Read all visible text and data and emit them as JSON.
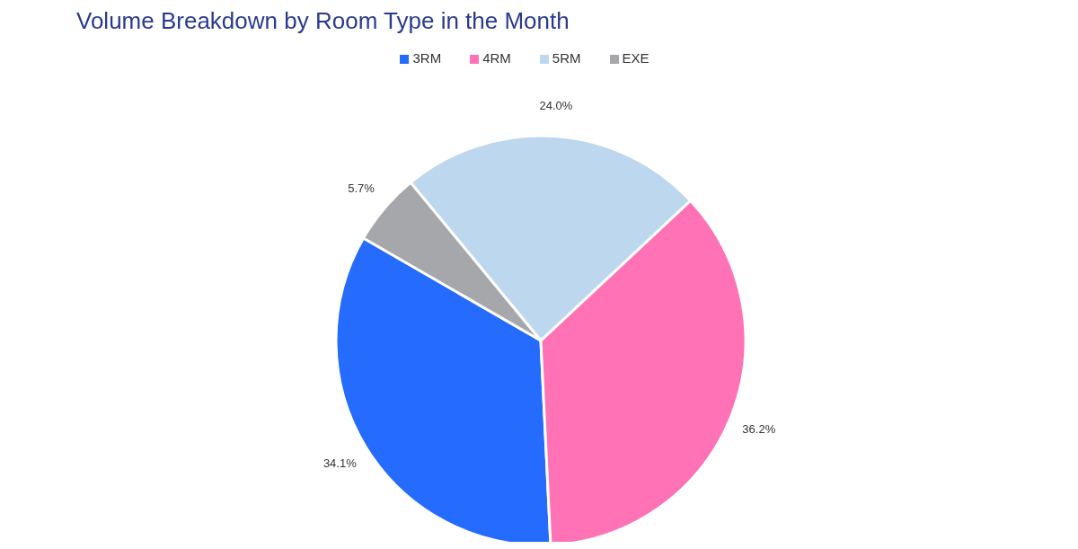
{
  "chart_data": {
    "type": "pie",
    "title": "Volume Breakdown by Room Type in the Month",
    "categories": [
      "3RM",
      "4RM",
      "5RM",
      "EXE"
    ],
    "values": [
      34.1,
      36.2,
      24.0,
      5.7
    ],
    "colors": [
      "#246bfe",
      "#ff73b6",
      "#bdd7ee",
      "#a6a7ab"
    ],
    "value_labels": [
      "34.1%",
      "36.2%",
      "24.0%",
      "5.7%"
    ],
    "legend": "top"
  }
}
